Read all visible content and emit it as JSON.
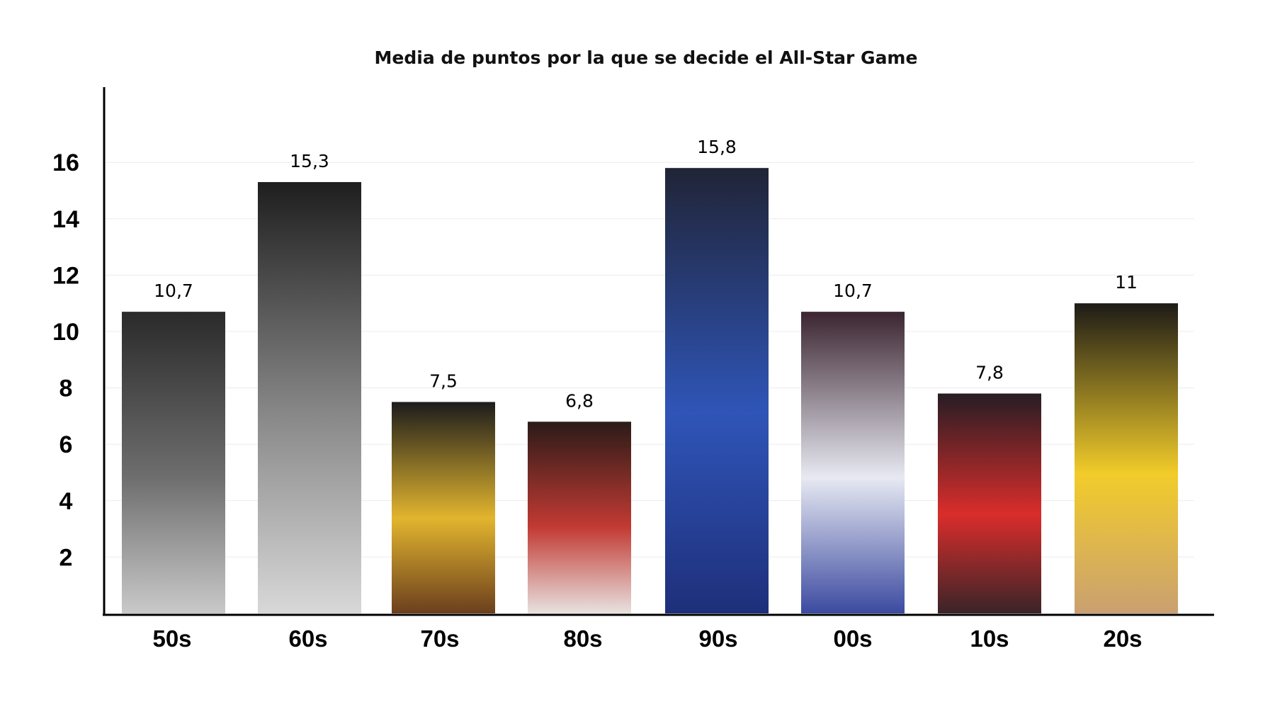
{
  "chart_data": {
    "type": "bar",
    "title": "Media de puntos por la que se decide el All-Star Game",
    "xlabel": "",
    "ylabel": "",
    "categories": [
      "50s",
      "60s",
      "70s",
      "80s",
      "90s",
      "00s",
      "10s",
      "20s"
    ],
    "values": [
      10.7,
      15.3,
      7.5,
      6.8,
      15.8,
      10.7,
      7.8,
      11
    ],
    "data_labels": [
      "10,7",
      "15,3",
      "7,5",
      "6,8",
      "15,8",
      "10,7",
      "7,8",
      "11"
    ],
    "y_ticks": [
      2,
      4,
      6,
      8,
      10,
      12,
      14,
      16
    ],
    "ylim": [
      0,
      19
    ],
    "grid": true,
    "legend": "none",
    "bar_fill": "player photographs (All-Star MVP of each decade)",
    "bar_palette": [
      {
        "top": "#2a2a2a",
        "mid": "#6e6e6e",
        "bottom": "#c9c9c9"
      },
      {
        "top": "#1e1e1e",
        "mid": "#8a8a8a",
        "bottom": "#d8d8d8"
      },
      {
        "top": "#1c1c1c",
        "mid": "#e2b52e",
        "bottom": "#6b3f1d"
      },
      {
        "top": "#2b1b18",
        "mid": "#c23a33",
        "bottom": "#e7e2e0"
      },
      {
        "top": "#202436",
        "mid": "#2f55b8",
        "bottom": "#1e2f7a"
      },
      {
        "top": "#3b2530",
        "mid": "#e7e9f2",
        "bottom": "#3c4aa0"
      },
      {
        "top": "#261d24",
        "mid": "#d92d2b",
        "bottom": "#3a2428"
      },
      {
        "top": "#1d1b17",
        "mid": "#f2cc2a",
        "bottom": "#caa071"
      }
    ]
  }
}
